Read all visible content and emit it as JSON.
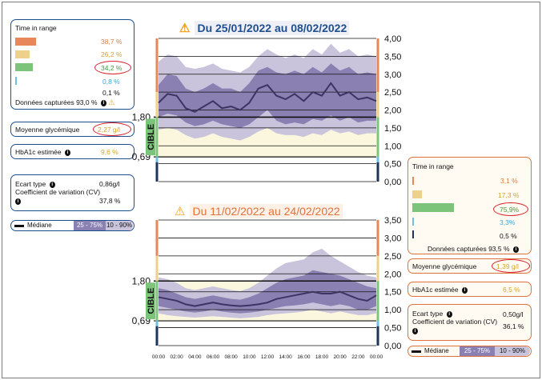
{
  "top_title": "Du 25/01/2022 au 08/02/2022",
  "bottom_title": "Du 11/02/2022 au 24/02/2022",
  "cible_label": "CIBLE",
  "left_panel": {
    "time_in_range_label": "Time in range",
    "tir": [
      "38,7 %",
      "26,2 %",
      "34,2 %",
      "0,8 %",
      "0,1 %"
    ],
    "captured": "Données capturées 93,0 %",
    "mean_label": "Moyenne glycémique",
    "mean_value": "2,27 g/l",
    "hba1c_label": "HbA1c estimée",
    "hba1c_value": "9,6 %",
    "sd_label": "Ecart type",
    "sd_value": "0,86g/l",
    "cv_label": "Coefficient de variation (CV)",
    "cv_value": "37,8 %"
  },
  "right_panel": {
    "time_in_range_label": "Time in range",
    "tir": [
      "3,1 %",
      "17,3 %",
      "75,9%",
      "3,3%",
      "0,5 %"
    ],
    "captured": "Données capturées 93,5 %",
    "mean_label": "Moyenne glycémique",
    "mean_value": "1,39 g/l",
    "hba1c_label": "HbA1c estimée",
    "hba1c_value": "6,5 %",
    "sd_label": "Ecart type",
    "sd_value": "0,50g/l",
    "cv_label": "Coefficient de variation (CV)",
    "cv_value": "36,1 %"
  },
  "legend": {
    "median": "Médiane",
    "iqr": "25 - 75%",
    "p10_90": "10 - 90%"
  },
  "colors": {
    "very_high": "#e8875a",
    "high": "#edd08a",
    "in_range": "#7cc47a",
    "low": "#6cc0e6",
    "very_low": "#1d3557",
    "band_outer": "#c9c3dc",
    "band_inner": "#8a80b2",
    "median": "#3e3462",
    "target_bg": "#fbf7df",
    "blue": "#1f4f8f",
    "orange": "#e0733a"
  },
  "chart_data": [
    {
      "type": "area",
      "title": "Du 25/01/2022 au 08/02/2022",
      "ylim": [
        0,
        4
      ],
      "y_ticks": [
        "0,00",
        "0,50",
        "1,00",
        "1,50",
        "2,00",
        "2,50",
        "3,00",
        "3,50",
        "4,00"
      ],
      "target_range": [
        0.69,
        1.8
      ],
      "x": [
        0,
        1,
        2,
        3,
        4,
        5,
        6,
        7,
        8,
        9,
        10,
        11,
        12,
        13,
        14,
        15,
        16,
        17,
        18,
        19,
        20,
        21,
        22,
        23,
        24
      ],
      "series": [
        {
          "name": "Médiane",
          "values": [
            2.2,
            2.45,
            2.4,
            2.05,
            1.95,
            2.1,
            2.25,
            2.05,
            2.1,
            2.0,
            2.2,
            2.6,
            2.7,
            2.4,
            2.3,
            2.45,
            2.25,
            2.5,
            2.4,
            2.75,
            2.4,
            2.5,
            2.3,
            2.35,
            2.25
          ]
        },
        {
          "name": "25 - 75%",
          "low": [
            1.8,
            1.9,
            1.85,
            1.65,
            1.55,
            1.6,
            1.7,
            1.6,
            1.55,
            1.5,
            1.6,
            1.8,
            2.0,
            1.7,
            1.6,
            1.65,
            1.6,
            1.75,
            1.7,
            1.85,
            1.7,
            1.8,
            1.65,
            1.7,
            1.7
          ],
          "high": [
            2.7,
            3.0,
            2.95,
            2.6,
            2.5,
            2.6,
            2.75,
            2.6,
            2.6,
            2.5,
            2.75,
            3.1,
            3.2,
            3.05,
            3.0,
            3.1,
            3.0,
            3.2,
            3.05,
            3.3,
            3.1,
            3.2,
            3.0,
            3.05,
            3.0
          ]
        },
        {
          "name": "10 - 90%",
          "low": [
            1.45,
            1.5,
            1.45,
            1.3,
            1.2,
            1.25,
            1.35,
            1.25,
            1.2,
            1.15,
            1.25,
            1.4,
            1.5,
            1.35,
            1.3,
            1.3,
            1.25,
            1.35,
            1.3,
            1.45,
            1.35,
            1.4,
            1.3,
            1.35,
            1.35
          ],
          "high": [
            3.35,
            3.55,
            3.5,
            3.2,
            3.15,
            3.2,
            3.3,
            3.15,
            3.1,
            3.05,
            3.2,
            3.5,
            3.7,
            3.55,
            3.45,
            3.55,
            3.45,
            3.7,
            3.55,
            3.85,
            3.6,
            3.7,
            3.5,
            3.55,
            3.5
          ]
        }
      ]
    },
    {
      "type": "area",
      "title": "Du 11/02/2022 au 24/02/2022",
      "ylim": [
        0,
        3.5
      ],
      "y_ticks": [
        "0,00",
        "0,50",
        "1,00",
        "1,50",
        "2,00",
        "2,50",
        "3,00",
        "3,50"
      ],
      "x_ticks": [
        "00:00",
        "02:00",
        "04:00",
        "06:00",
        "08:00",
        "10:00",
        "12:00",
        "14:00",
        "16:00",
        "18:00",
        "20:00",
        "22:00",
        "00:00"
      ],
      "target_range": [
        0.69,
        1.8
      ],
      "x": [
        0,
        1,
        2,
        3,
        4,
        5,
        6,
        7,
        8,
        9,
        10,
        11,
        12,
        13,
        14,
        15,
        16,
        17,
        18,
        19,
        20,
        21,
        22,
        23,
        24
      ],
      "series": [
        {
          "name": "Médiane",
          "values": [
            1.35,
            1.3,
            1.25,
            1.15,
            1.1,
            1.15,
            1.2,
            1.15,
            1.12,
            1.1,
            1.12,
            1.15,
            1.2,
            1.3,
            1.35,
            1.4,
            1.45,
            1.5,
            1.45,
            1.45,
            1.5,
            1.4,
            1.3,
            1.25,
            1.4
          ]
        },
        {
          "name": "25 - 75%",
          "low": [
            1.1,
            1.05,
            1.0,
            0.95,
            0.92,
            0.95,
            1.0,
            0.95,
            0.92,
            0.9,
            0.92,
            0.95,
            1.0,
            1.05,
            1.1,
            1.12,
            1.15,
            1.2,
            1.15,
            1.1,
            1.15,
            1.1,
            1.0,
            1.0,
            1.1
          ],
          "high": [
            1.6,
            1.55,
            1.45,
            1.35,
            1.3,
            1.35,
            1.4,
            1.35,
            1.3,
            1.28,
            1.35,
            1.45,
            1.6,
            1.75,
            1.85,
            1.9,
            1.95,
            2.1,
            2.05,
            2.0,
            1.95,
            1.85,
            1.75,
            1.65,
            1.6
          ]
        },
        {
          "name": "10 - 90%",
          "low": [
            0.9,
            0.85,
            0.82,
            0.8,
            0.78,
            0.8,
            0.82,
            0.8,
            0.78,
            0.76,
            0.78,
            0.8,
            0.85,
            0.88,
            0.9,
            0.92,
            0.95,
            1.0,
            0.95,
            0.9,
            0.95,
            0.9,
            0.85,
            0.85,
            0.9
          ],
          "high": [
            1.9,
            1.85,
            1.75,
            1.6,
            1.55,
            1.6,
            1.65,
            1.6,
            1.55,
            1.52,
            1.6,
            1.75,
            1.95,
            2.15,
            2.3,
            2.35,
            2.4,
            2.6,
            2.7,
            2.5,
            2.35,
            2.2,
            2.05,
            1.95,
            1.9
          ]
        }
      ]
    }
  ]
}
